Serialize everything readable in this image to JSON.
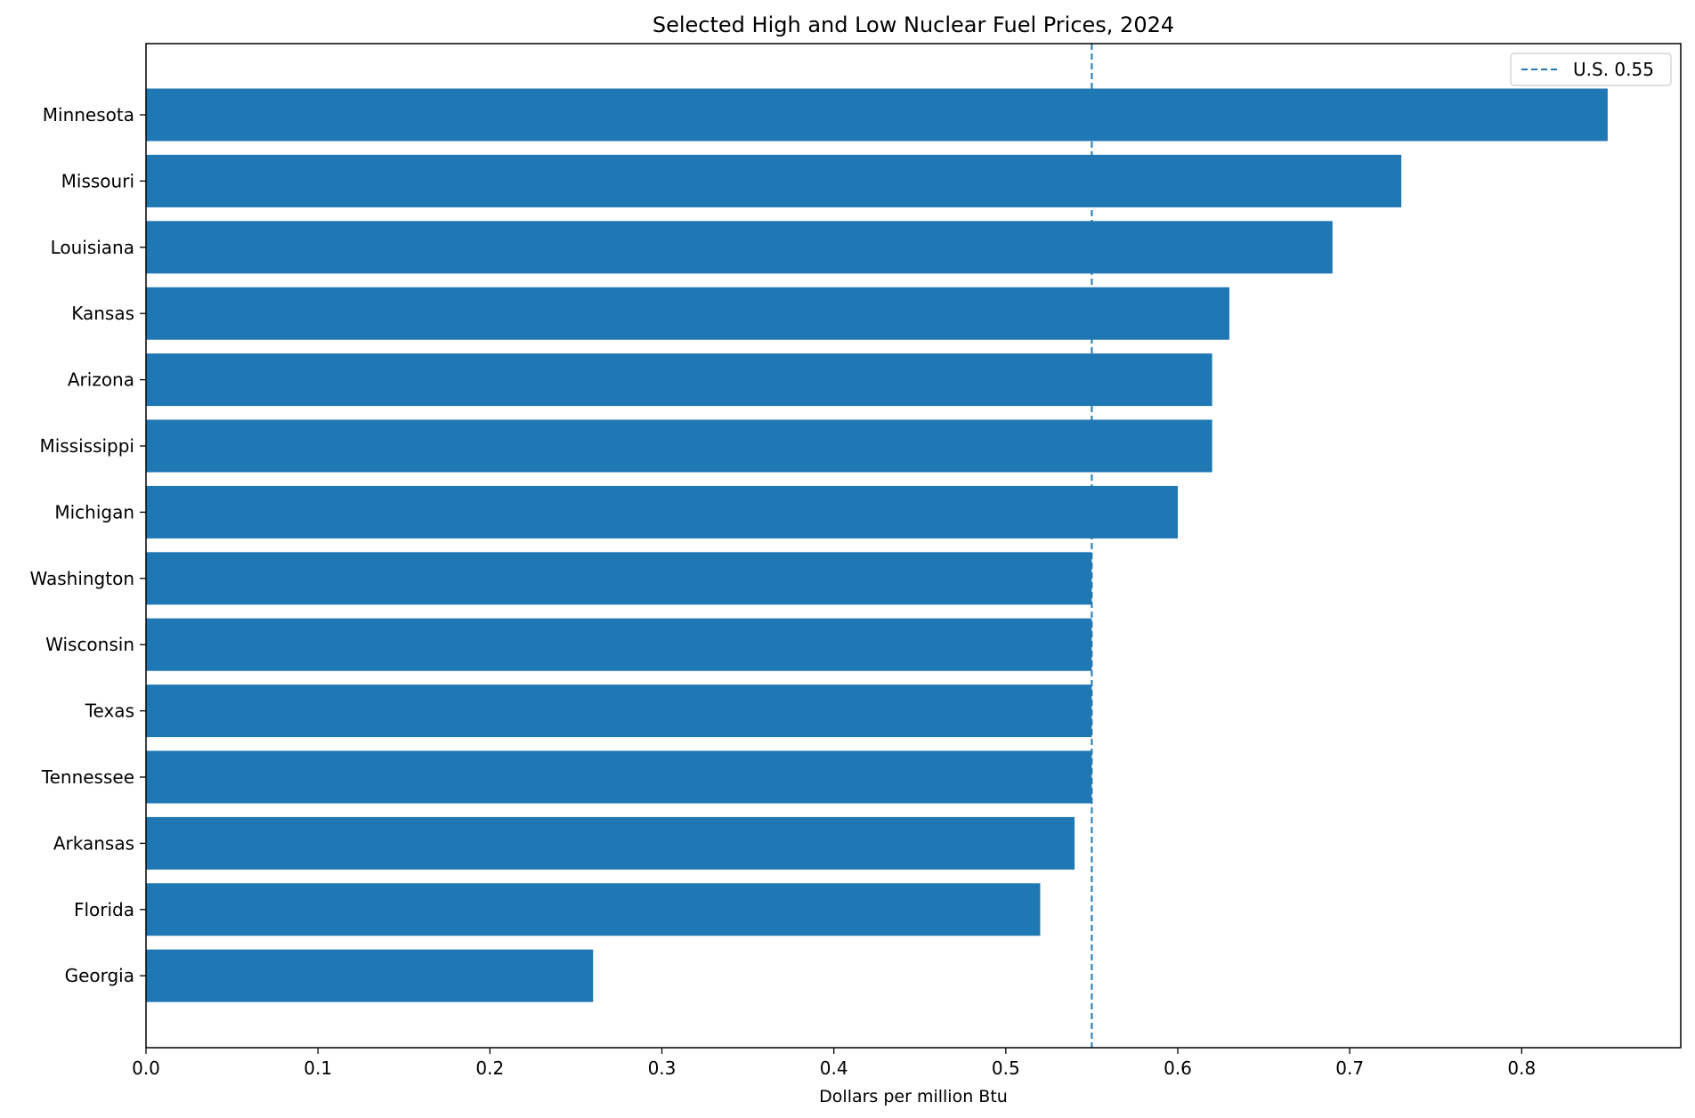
{
  "chart_data": {
    "type": "bar",
    "orientation": "horizontal",
    "title": "Selected High and Low Nuclear Fuel Prices, 2024",
    "xlabel": "Dollars per million Btu",
    "ylabel": "",
    "categories": [
      "Minnesota",
      "Missouri",
      "Louisiana",
      "Kansas",
      "Arizona",
      "Mississippi",
      "Michigan",
      "Washington",
      "Wisconsin",
      "Texas",
      "Tennessee",
      "Arkansas",
      "Florida",
      "Georgia"
    ],
    "values": [
      0.85,
      0.73,
      0.69,
      0.63,
      0.62,
      0.62,
      0.6,
      0.55,
      0.55,
      0.55,
      0.55,
      0.54,
      0.52,
      0.26
    ],
    "xlim": [
      0,
      0.8925
    ],
    "xticks": [
      0.0,
      0.1,
      0.2,
      0.3,
      0.4,
      0.5,
      0.6,
      0.7,
      0.8
    ],
    "xtick_labels": [
      "0.0",
      "0.1",
      "0.2",
      "0.3",
      "0.4",
      "0.5",
      "0.6",
      "0.7",
      "0.8"
    ],
    "bar_color": "#1f77b4",
    "reference_line": {
      "value": 0.55,
      "label": "U.S. 0.55",
      "style": "dashed",
      "color": "#1f77b4"
    },
    "legend_position": "top-right",
    "grid": false
  }
}
